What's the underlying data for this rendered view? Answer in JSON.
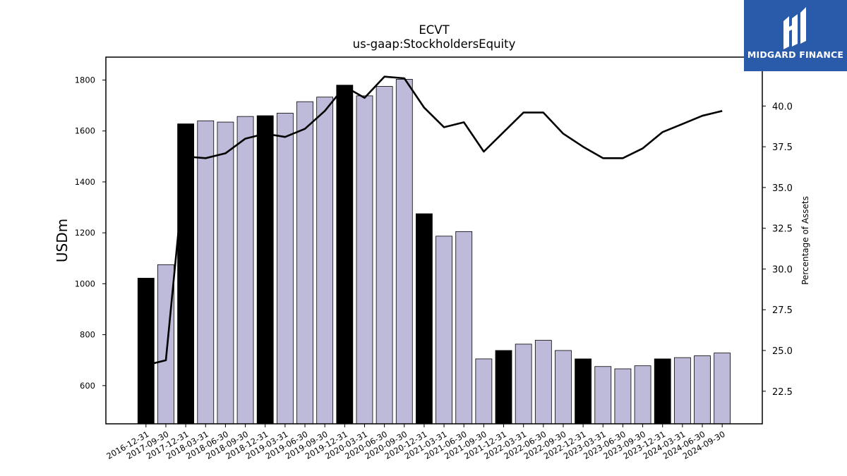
{
  "chart_data": {
    "type": "bar",
    "title": "ECVT",
    "subtitle": "us-gaap:StockholdersEquity",
    "ylabel": "USDm",
    "y2label": "Percentage of Assets",
    "ylim": [
      450,
      1890
    ],
    "y2lim": [
      20.5,
      43.0
    ],
    "yticks": [
      600,
      800,
      1000,
      1200,
      1400,
      1600,
      1800
    ],
    "y2ticks": [
      22.5,
      25.0,
      27.5,
      30.0,
      32.5,
      35.0,
      37.5,
      40.0
    ],
    "y2tick_labels": [
      "22.5",
      "25.0",
      "27.5",
      "30.0",
      "32.5",
      "35.0",
      "37.5",
      "40.0"
    ],
    "categories": [
      "2016-12-31",
      "2017-09-30",
      "2017-12-31",
      "2018-03-31",
      "2018-06-30",
      "2018-09-30",
      "2018-12-31",
      "2019-03-31",
      "2019-06-30",
      "2019-09-30",
      "2019-12-31",
      "2020-03-31",
      "2020-06-30",
      "2020-09-30",
      "2020-12-31",
      "2021-03-31",
      "2021-06-30",
      "2021-09-30",
      "2021-12-31",
      "2022-03-31",
      "2022-06-30",
      "2022-09-30",
      "2022-12-31",
      "2023-03-31",
      "2023-06-30",
      "2023-09-30",
      "2023-12-31",
      "2024-03-31",
      "2024-06-30",
      "2024-09-30"
    ],
    "series": [
      {
        "kind": "bar",
        "axis": "left",
        "values": [
          1022,
          1075,
          1628,
          1640,
          1635,
          1657,
          1660,
          1670,
          1715,
          1733,
          1780,
          1738,
          1775,
          1803,
          1275,
          1187,
          1205,
          705,
          738,
          763,
          778,
          738,
          705,
          675,
          666,
          678,
          705,
          710,
          717,
          728
        ],
        "year_end": [
          true,
          false,
          true,
          false,
          false,
          false,
          true,
          false,
          false,
          false,
          true,
          false,
          false,
          false,
          true,
          false,
          false,
          false,
          true,
          false,
          false,
          false,
          true,
          false,
          false,
          false,
          true,
          false,
          false,
          false
        ]
      },
      {
        "kind": "line",
        "axis": "right",
        "values": [
          24.1,
          24.4,
          36.9,
          36.8,
          37.1,
          38.0,
          38.3,
          38.1,
          38.6,
          39.7,
          41.2,
          40.5,
          41.8,
          41.7,
          39.9,
          38.7,
          39.0,
          37.2,
          38.4,
          39.6,
          39.6,
          38.3,
          37.5,
          36.8,
          36.8,
          37.4,
          38.4,
          38.9,
          39.4,
          39.7
        ]
      }
    ],
    "colors": {
      "year_end_bar": "#000000",
      "bar": "#bebad9",
      "line": "#000000"
    },
    "grid": false
  },
  "logo": {
    "text": "MIDGARD FINANCE",
    "background": "#2a5bab"
  }
}
